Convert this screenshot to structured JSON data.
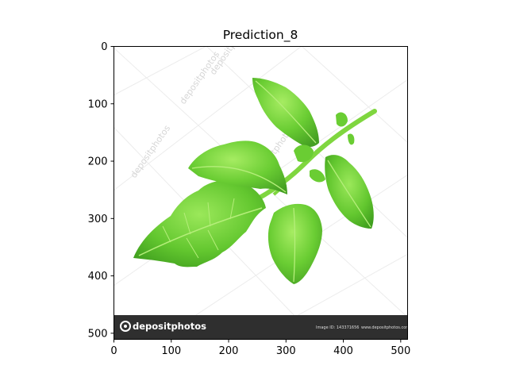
{
  "figure": {
    "title": "Prediction_8",
    "x_ticks": [
      "0",
      "100",
      "200",
      "300",
      "400",
      "500"
    ],
    "y_ticks": [
      "0",
      "100",
      "200",
      "300",
      "400",
      "500"
    ]
  },
  "image": {
    "subject": "tomato-leaf",
    "watermark_text": "depositphotos",
    "banner": {
      "logo_text": "depositphotos",
      "image_id": "Image ID: 143371656",
      "url": "www.depositphotos.com"
    }
  },
  "colors": {
    "leaf_light": "#8fe04a",
    "leaf_mid": "#5cc22c",
    "leaf_dark": "#3f9e1e",
    "vein": "#b5ee7a",
    "banner": "#2f2f2f"
  }
}
